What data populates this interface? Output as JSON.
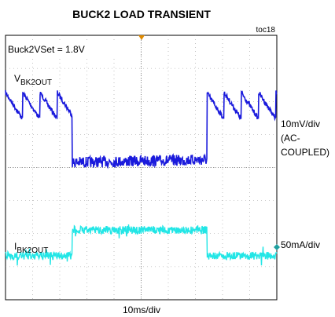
{
  "title": "BUCK2 LOAD TRANSIENT",
  "tag": "toc18",
  "setting": "Buck2VSet = 1.8V",
  "voltage_label": {
    "main": "V",
    "sub": "BK2OUT"
  },
  "current_label": {
    "main": "I",
    "sub": "BK2OUT"
  },
  "voltage_scale": [
    "10mV/div",
    "(AC-",
    "COUPLED)"
  ],
  "current_scale": "50mA/div",
  "time_scale": "10ms/div"
}
